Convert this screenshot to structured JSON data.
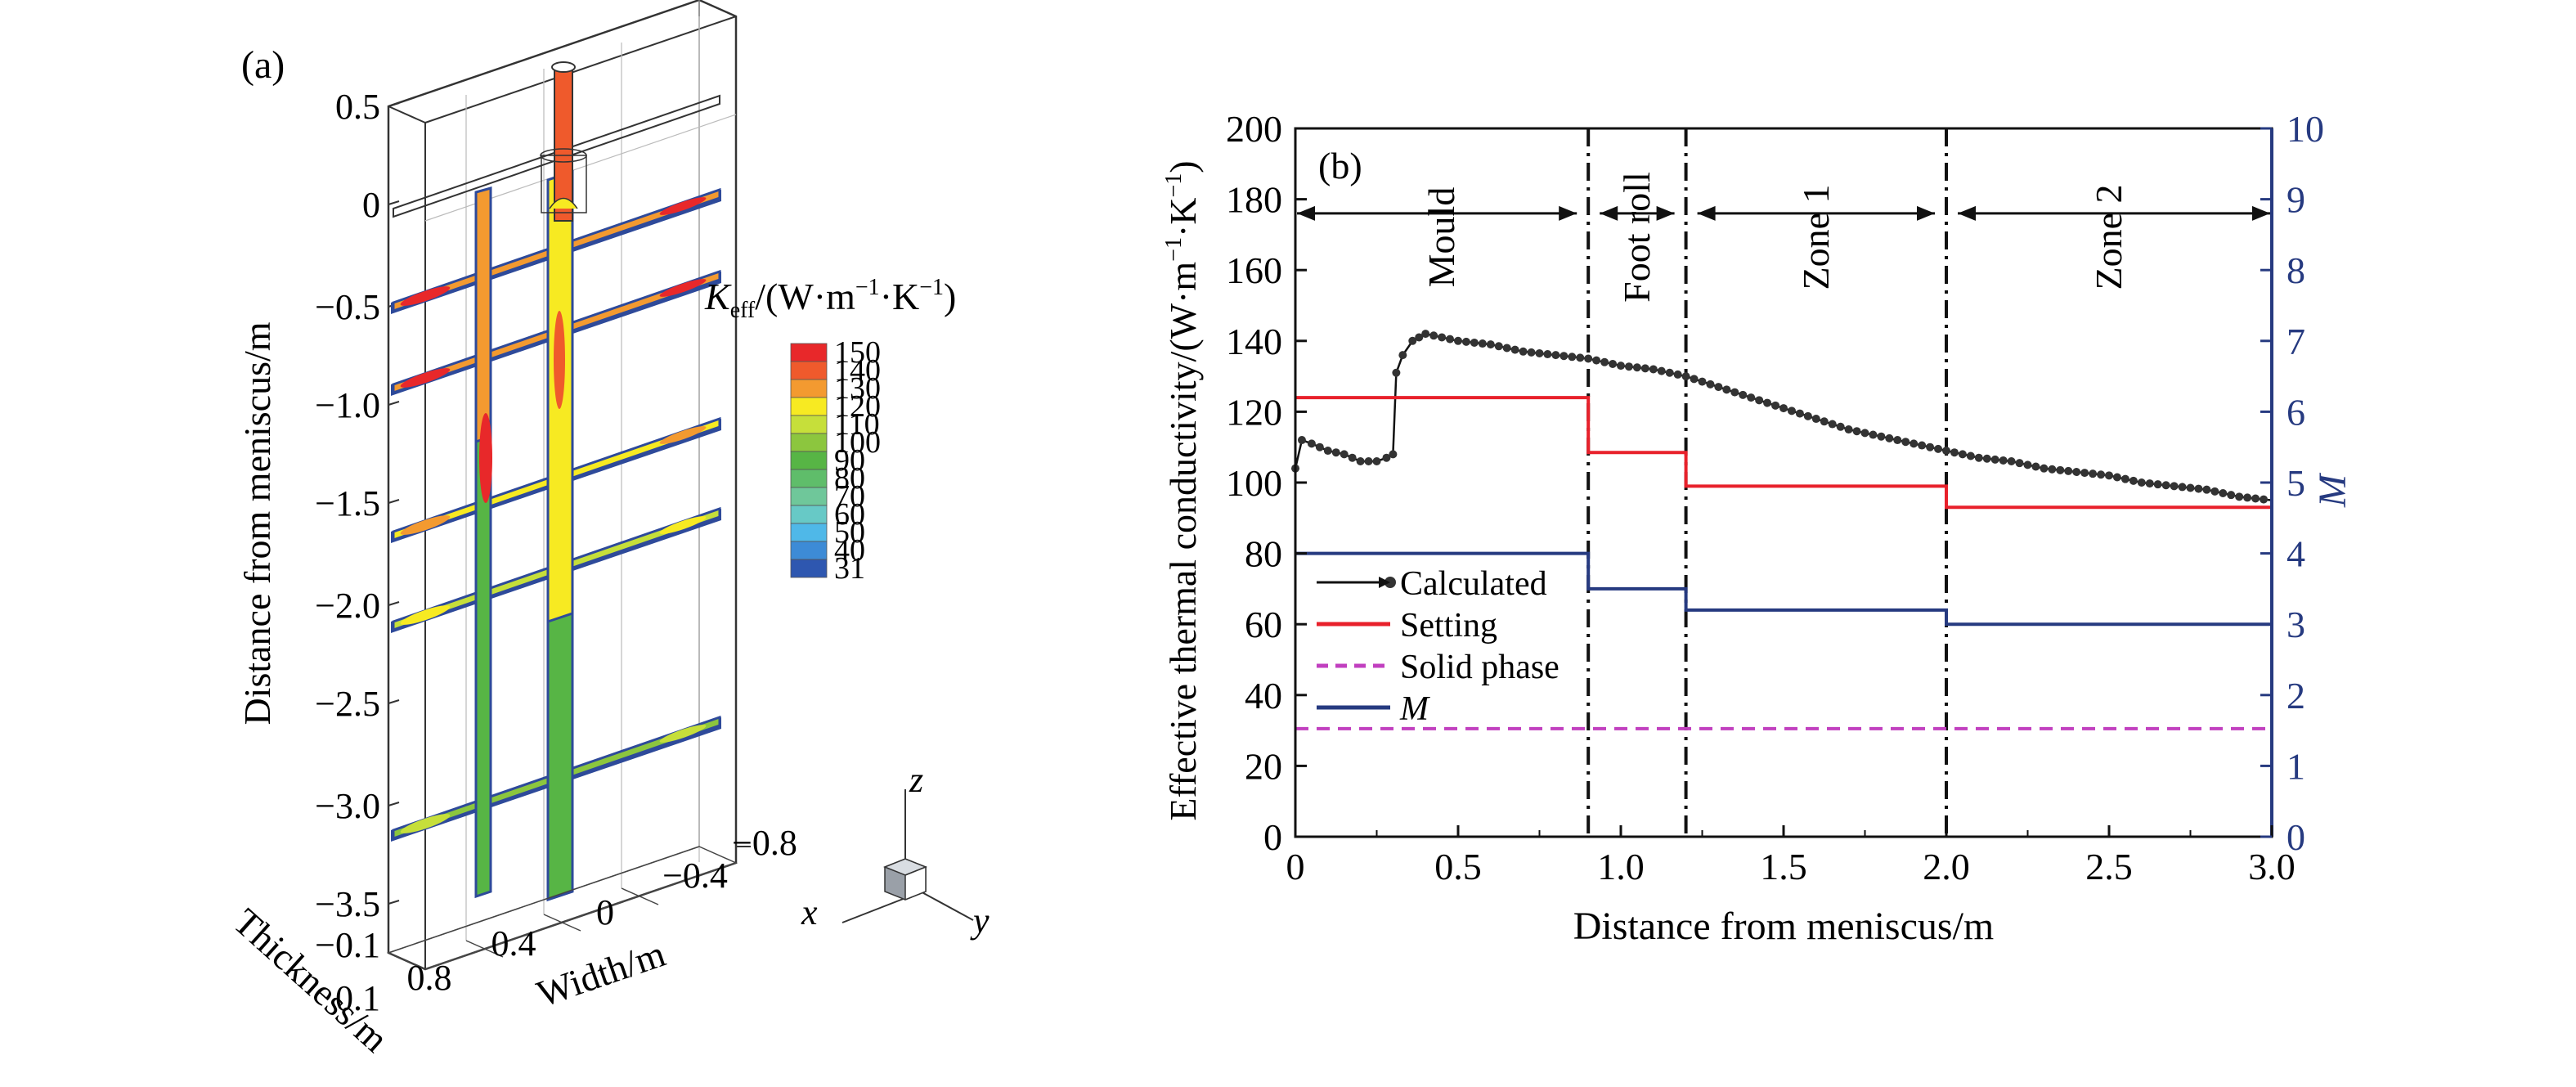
{
  "panel_a": {
    "label": "(a)",
    "axis_z_title": "Distance from meniscus/m",
    "axis_z_ticks": [
      "0.5",
      "0",
      "−0.5",
      "−1.0",
      "−1.5",
      "−2.0",
      "−2.5",
      "−3.0",
      "−3.5"
    ],
    "axis_width_title": "Width/m",
    "axis_width_ticks": [
      "−0.8",
      "−0.4",
      "0",
      "0.4",
      "0.8"
    ],
    "axis_thickness_title": "Thickness/m",
    "axis_thickness_ticks": [
      "−0.1",
      "0.1"
    ],
    "legend": {
      "symbol": "K",
      "subscript": "eff",
      "unit": "/(W·m",
      "exp1": "−1",
      "mid": "·K",
      "exp2": "−1",
      "close": ")",
      "levels": [
        {
          "label": "150",
          "color": "#e8282a"
        },
        {
          "label": "140",
          "color": "#ef5a2c"
        },
        {
          "label": "130",
          "color": "#f39a30"
        },
        {
          "label": "120",
          "color": "#f7ea22"
        },
        {
          "label": "110",
          "color": "#c6df3a"
        },
        {
          "label": "100",
          "color": "#8cc63e"
        },
        {
          "label": "90",
          "color": "#57b545"
        },
        {
          "label": "80",
          "color": "#5fbd6a"
        },
        {
          "label": "70",
          "color": "#6fc79a"
        },
        {
          "label": "60",
          "color": "#67c9c6"
        },
        {
          "label": "50",
          "color": "#4fb8e8"
        },
        {
          "label": "40",
          "color": "#3d8bd6"
        },
        {
          "label": "31",
          "color": "#2e57b0"
        }
      ]
    },
    "triad": {
      "z": "z",
      "x": "x",
      "y": "y"
    }
  },
  "chart_data": {
    "type": "line",
    "panel_label": "(b)",
    "xlabel": "Distance from meniscus/m",
    "ylabel": {
      "text": "Effective thermal conductivity/(W·m",
      "exp1": "−1",
      "mid": "·K",
      "exp2": "−1",
      "close": ")"
    },
    "y2label": "M",
    "xlim": [
      0,
      3.0
    ],
    "ylim": [
      0,
      200
    ],
    "y2lim": [
      0,
      10
    ],
    "xticks": [
      0,
      0.5,
      1.0,
      1.5,
      2.0,
      2.5,
      3.0
    ],
    "xtick_labels": [
      "0",
      "0.5",
      "1.0",
      "1.5",
      "2.0",
      "2.5",
      "3.0"
    ],
    "yticks": [
      0,
      20,
      40,
      60,
      80,
      100,
      120,
      140,
      160,
      180,
      200
    ],
    "y2ticks": [
      0,
      1,
      2,
      3,
      4,
      5,
      6,
      7,
      8,
      9,
      10
    ],
    "zone_boundaries": [
      0.9,
      1.2,
      2.0
    ],
    "zones": [
      {
        "label": "Mould",
        "from": 0,
        "to": 0.9
      },
      {
        "label": "Foot roll",
        "from": 0.9,
        "to": 1.2
      },
      {
        "label": "Zone 1",
        "from": 1.2,
        "to": 2.0
      },
      {
        "label": "Zone 2",
        "from": 2.0,
        "to": 3.0
      }
    ],
    "zone_arrow_y": 176,
    "series": [
      {
        "name": "Calculated",
        "axis": "left",
        "color": "#111111",
        "style": "marker-line",
        "x": [
          0,
          0.02,
          0.05,
          0.1,
          0.15,
          0.2,
          0.25,
          0.28,
          0.3,
          0.31,
          0.33,
          0.36,
          0.4,
          0.45,
          0.5,
          0.6,
          0.7,
          0.8,
          0.9,
          1.0,
          1.1,
          1.2,
          1.3,
          1.4,
          1.5,
          1.6,
          1.7,
          1.8,
          1.9,
          2.0,
          2.1,
          2.2,
          2.3,
          2.4,
          2.5,
          2.6,
          2.7,
          2.8,
          2.9,
          3.0
        ],
        "y": [
          104,
          112,
          111,
          109,
          108,
          106,
          106,
          107,
          108,
          131,
          136,
          140,
          142,
          141,
          140,
          139,
          137,
          136,
          135,
          133,
          132,
          130,
          127,
          124,
          121,
          118,
          115,
          113,
          111,
          109,
          107,
          106,
          104,
          103,
          102,
          100,
          99,
          98,
          96,
          95
        ]
      },
      {
        "name": "Setting",
        "axis": "left",
        "color": "#e8212b",
        "style": "step",
        "x": [
          0,
          0.9,
          0.9,
          1.2,
          1.2,
          2.0,
          2.0,
          3.0
        ],
        "y": [
          124,
          124,
          108.5,
          108.5,
          99,
          99,
          93,
          93
        ]
      },
      {
        "name": "Solid phase",
        "axis": "left",
        "color": "#c13fbf",
        "style": "dashed",
        "x": [
          0,
          3.0
        ],
        "y": [
          30.5,
          30.5
        ]
      },
      {
        "name": "M",
        "axis": "right",
        "color": "#263a80",
        "style": "step",
        "x": [
          0,
          0.9,
          0.9,
          1.2,
          1.2,
          2.0,
          2.0,
          3.0
        ],
        "y": [
          4,
          4,
          3.5,
          3.5,
          3.2,
          3.2,
          3,
          3
        ]
      }
    ]
  }
}
